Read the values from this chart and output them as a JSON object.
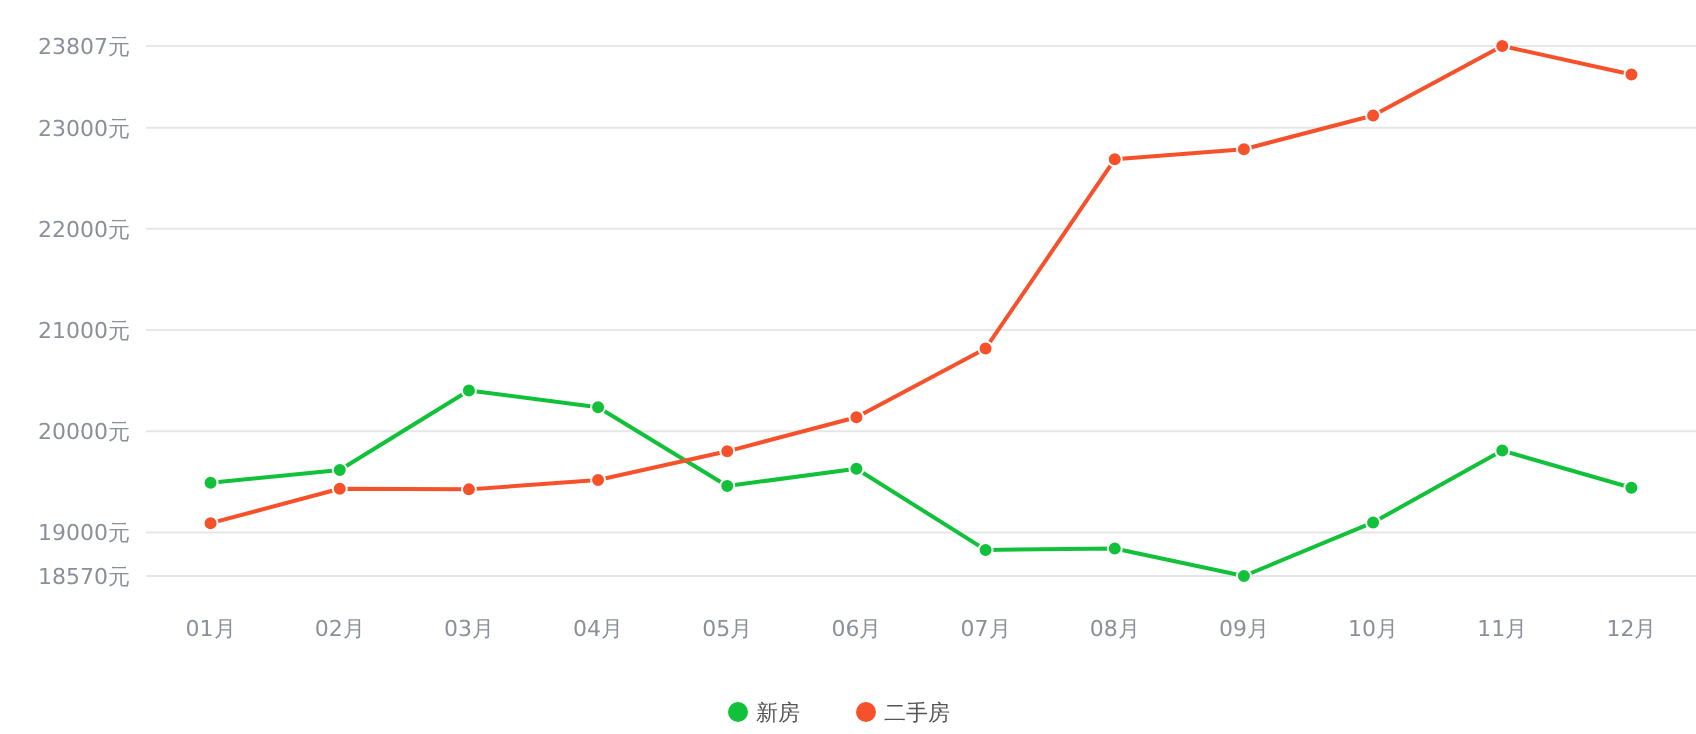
{
  "chart_data": {
    "type": "line",
    "categories": [
      "01月",
      "02月",
      "03月",
      "04月",
      "05月",
      "06月",
      "07月",
      "08月",
      "09月",
      "10月",
      "11月",
      "12月"
    ],
    "series": [
      {
        "name": "新房",
        "color": "#12c13a",
        "values": [
          19492,
          19617,
          20403,
          20238,
          19459,
          19630,
          18828,
          18842,
          18570,
          19099,
          19809,
          19442
        ]
      },
      {
        "name": "二手房",
        "color": "#f7512b",
        "values": [
          19092,
          19432,
          19426,
          19518,
          19802,
          20139,
          20818,
          22687,
          22787,
          23120,
          23807,
          23526
        ]
      }
    ],
    "ylim": [
      18570,
      23807
    ],
    "yticks": [
      {
        "value": 18570,
        "label": "18570元"
      },
      {
        "value": 19000,
        "label": "19000元"
      },
      {
        "value": 20000,
        "label": "20000元"
      },
      {
        "value": 21000,
        "label": "21000元"
      },
      {
        "value": 22000,
        "label": "22000元"
      },
      {
        "value": 23000,
        "label": "23000元"
      },
      {
        "value": 23807,
        "label": "23807元"
      }
    ],
    "grid": "y",
    "legend": "bottom",
    "marker": "circle",
    "line_style": "solid"
  }
}
